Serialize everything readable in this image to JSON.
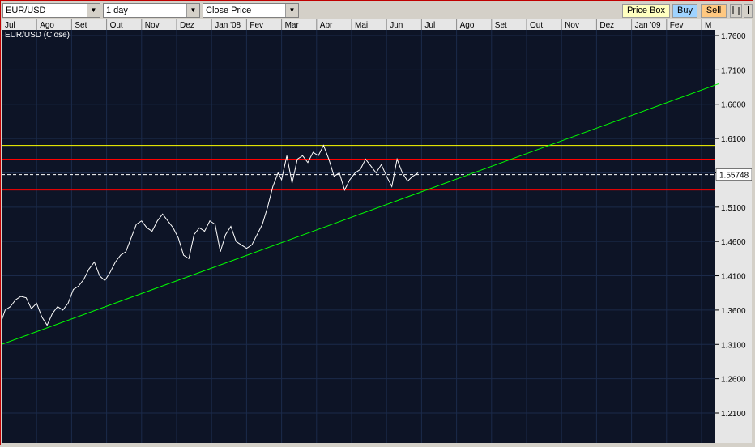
{
  "toolbar": {
    "symbol": "EUR/USD",
    "interval": "1 day",
    "price_type": "Close Price",
    "price_box_label": "Price Box",
    "buy_label": "Buy",
    "sell_label": "Sell",
    "colors": {
      "price_box_bg": "#ffffc0",
      "buy_bg": "#9fd3ff",
      "sell_bg": "#ffc880"
    }
  },
  "chart_data": {
    "type": "line",
    "title": "EUR/USD (Close)",
    "x_ticks": [
      "Jul",
      "Ago",
      "Set",
      "Out",
      "Nov",
      "Dez",
      "Jan '08",
      "Fev",
      "Mar",
      "Abr",
      "Mai",
      "Jun",
      "Jul",
      "Ago",
      "Set",
      "Out",
      "Nov",
      "Dez",
      "Jan '09",
      "Fev",
      "M"
    ],
    "y_ticks": [
      "1.7600",
      "1.7100",
      "1.6600",
      "1.6100",
      "1.5600",
      "1.5100",
      "1.4600",
      "1.4100",
      "1.3600",
      "1.3100",
      "1.2600",
      "1.2100"
    ],
    "ylim": [
      1.18,
      1.78
    ],
    "current_value_label": "1.55748",
    "current_value": 1.5575,
    "series": [
      {
        "x": [
          0,
          0.1,
          0.25,
          0.4,
          0.55,
          0.7,
          0.85,
          1.0,
          1.15,
          1.3,
          1.45,
          1.6,
          1.75,
          1.9,
          2.05,
          2.2,
          2.35,
          2.5,
          2.65,
          2.8,
          2.95,
          3.1,
          3.25,
          3.4,
          3.55,
          3.7,
          3.85,
          4.0,
          4.15,
          4.3,
          4.45,
          4.6,
          4.75,
          4.9,
          5.05,
          5.2,
          5.35,
          5.5,
          5.65,
          5.8,
          5.95,
          6.1,
          6.25,
          6.4,
          6.55,
          6.7,
          6.85,
          7.0,
          7.15,
          7.3,
          7.45,
          7.6,
          7.75,
          7.9,
          8.0,
          8.15,
          8.3,
          8.45,
          8.6,
          8.75,
          8.9,
          9.05,
          9.2,
          9.35,
          9.5,
          9.65,
          9.8,
          9.95,
          10.1,
          10.25,
          10.4,
          10.55,
          10.7,
          10.85,
          11.0,
          11.15,
          11.3,
          11.45,
          11.6,
          11.75,
          11.9
        ],
        "y": [
          1.345,
          1.36,
          1.365,
          1.375,
          1.38,
          1.378,
          1.362,
          1.37,
          1.35,
          1.338,
          1.355,
          1.365,
          1.36,
          1.37,
          1.39,
          1.395,
          1.405,
          1.42,
          1.43,
          1.41,
          1.403,
          1.415,
          1.43,
          1.44,
          1.445,
          1.465,
          1.485,
          1.49,
          1.48,
          1.475,
          1.49,
          1.5,
          1.49,
          1.48,
          1.465,
          1.44,
          1.435,
          1.47,
          1.48,
          1.475,
          1.49,
          1.485,
          1.445,
          1.47,
          1.482,
          1.46,
          1.455,
          1.45,
          1.455,
          1.47,
          1.485,
          1.51,
          1.54,
          1.56,
          1.55,
          1.585,
          1.545,
          1.58,
          1.585,
          1.575,
          1.59,
          1.585,
          1.6,
          1.58,
          1.555,
          1.56,
          1.535,
          1.55,
          1.56,
          1.565,
          1.58,
          1.57,
          1.56,
          1.572,
          1.555,
          1.54,
          1.58,
          1.56,
          1.548,
          1.555,
          1.56
        ]
      }
    ],
    "lines": {
      "yellow_level": 1.6,
      "red_upper": 1.58,
      "red_lower": 1.535,
      "green_trend": {
        "x0": 0,
        "y0": 1.31,
        "x1": 20.5,
        "y1": 1.69
      }
    },
    "colors": {
      "background": "#0d1426",
      "grid": "#1b2a4a",
      "price": "#ffffff",
      "yellow": "#ffff00",
      "red": "#ff0000",
      "green": "#00ff00",
      "axis_bg": "#e6e6e6"
    }
  }
}
